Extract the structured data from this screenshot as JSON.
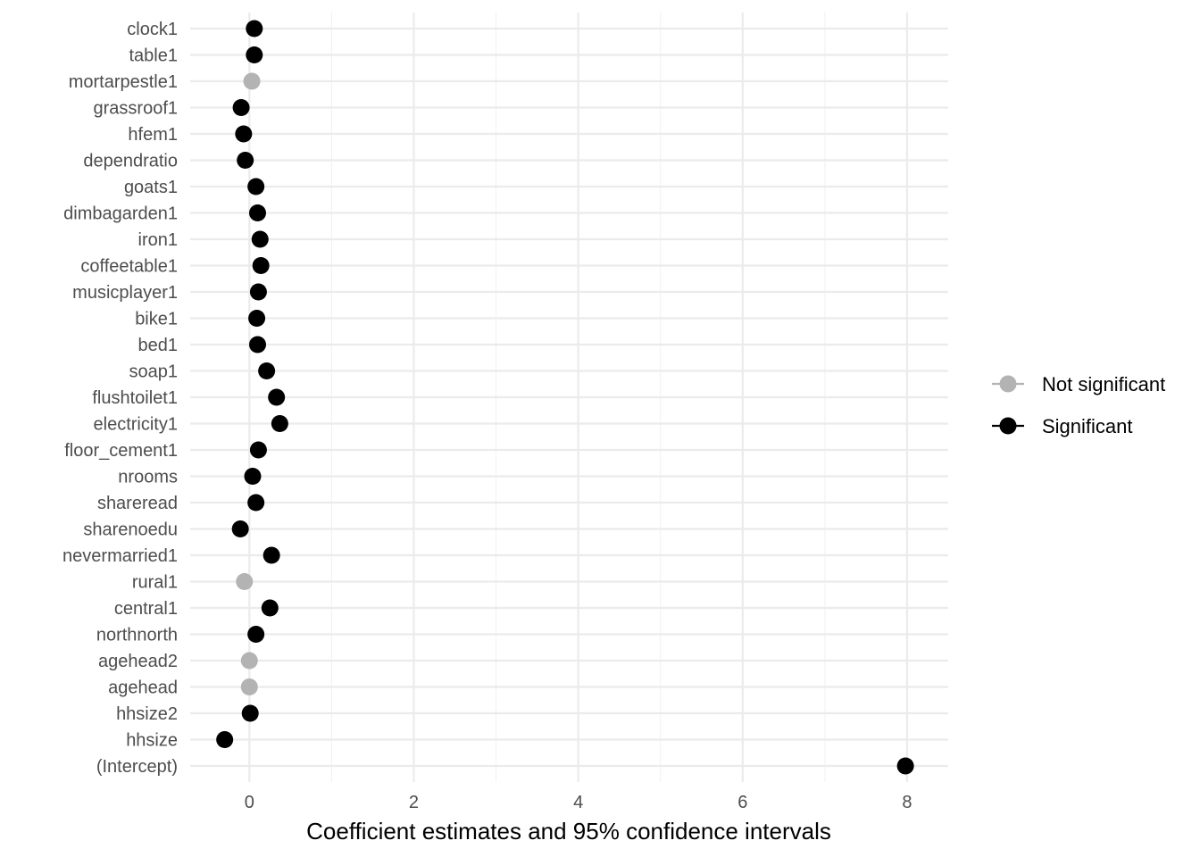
{
  "chart_data": {
    "type": "scatter",
    "xlabel": "Coefficient estimates and 95% confidence intervals",
    "ylabel": "",
    "xlim": [
      -0.72,
      8.5
    ],
    "x_ticks": [
      0,
      2,
      4,
      6,
      8
    ],
    "grid": true,
    "legend_position": "right",
    "colors": {
      "Not significant": "#b3b3b3",
      "Significant": "#000000"
    },
    "legend": [
      {
        "label": "Not significant",
        "color": "#b3b3b3"
      },
      {
        "label": "Significant",
        "color": "#000000"
      }
    ],
    "points": [
      {
        "term": "clock1",
        "estimate": 0.06,
        "group": "Significant"
      },
      {
        "term": "table1",
        "estimate": 0.06,
        "group": "Significant"
      },
      {
        "term": "mortarpestle1",
        "estimate": 0.03,
        "group": "Not significant"
      },
      {
        "term": "grassroof1",
        "estimate": -0.1,
        "group": "Significant"
      },
      {
        "term": "hfem1",
        "estimate": -0.07,
        "group": "Significant"
      },
      {
        "term": "dependratio",
        "estimate": -0.05,
        "group": "Significant"
      },
      {
        "term": "goats1",
        "estimate": 0.08,
        "group": "Significant"
      },
      {
        "term": "dimbagarden1",
        "estimate": 0.1,
        "group": "Significant"
      },
      {
        "term": "iron1",
        "estimate": 0.13,
        "group": "Significant"
      },
      {
        "term": "coffeetable1",
        "estimate": 0.14,
        "group": "Significant"
      },
      {
        "term": "musicplayer1",
        "estimate": 0.11,
        "group": "Significant"
      },
      {
        "term": "bike1",
        "estimate": 0.09,
        "group": "Significant"
      },
      {
        "term": "bed1",
        "estimate": 0.1,
        "group": "Significant"
      },
      {
        "term": "soap1",
        "estimate": 0.21,
        "group": "Significant"
      },
      {
        "term": "flushtoilet1",
        "estimate": 0.33,
        "group": "Significant"
      },
      {
        "term": "electricity1",
        "estimate": 0.37,
        "group": "Significant"
      },
      {
        "term": "floor_cement1",
        "estimate": 0.11,
        "group": "Significant"
      },
      {
        "term": "nrooms",
        "estimate": 0.04,
        "group": "Significant"
      },
      {
        "term": "shareread",
        "estimate": 0.08,
        "group": "Significant"
      },
      {
        "term": "sharenoedu",
        "estimate": -0.11,
        "group": "Significant"
      },
      {
        "term": "nevermarried1",
        "estimate": 0.27,
        "group": "Significant"
      },
      {
        "term": "rural1",
        "estimate": -0.06,
        "group": "Not significant"
      },
      {
        "term": "central1",
        "estimate": 0.25,
        "group": "Significant"
      },
      {
        "term": "northnorth",
        "estimate": 0.08,
        "group": "Significant"
      },
      {
        "term": "agehead2",
        "estimate": 0.0,
        "group": "Not significant"
      },
      {
        "term": "agehead",
        "estimate": 0.0,
        "group": "Not significant"
      },
      {
        "term": "hhsize2",
        "estimate": 0.01,
        "group": "Significant"
      },
      {
        "term": "hhsize",
        "estimate": -0.3,
        "group": "Significant"
      },
      {
        "term": "(Intercept)",
        "estimate": 7.98,
        "group": "Significant"
      }
    ]
  }
}
